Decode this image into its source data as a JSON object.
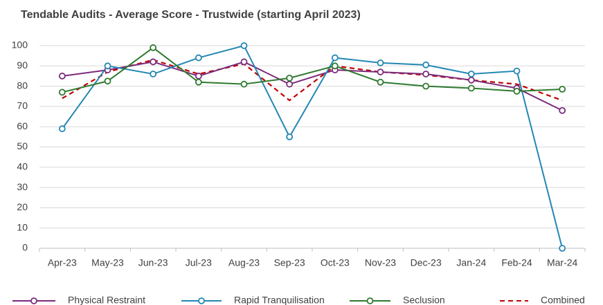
{
  "chart_data": {
    "type": "line",
    "title": "Tendable Audits - Average Score - Trustwide (starting April 2023)",
    "categories": [
      "Apr-23",
      "May-23",
      "Jun-23",
      "Jul-23",
      "Aug-23",
      "Sep-23",
      "Oct-23",
      "Nov-23",
      "Dec-23",
      "Jan-24",
      "Feb-24",
      "Mar-24"
    ],
    "series": [
      {
        "name": "Physical Restraint",
        "color": "#7b2a7b",
        "markers": true,
        "dashed": false,
        "values": [
          85,
          88,
          92,
          85,
          92,
          81,
          88,
          87,
          86,
          83,
          79,
          68
        ]
      },
      {
        "name": "Rapid Tranquilisation",
        "color": "#2287b3",
        "markers": true,
        "dashed": false,
        "values": [
          59,
          90,
          86,
          94,
          100,
          55,
          94,
          91.5,
          90.5,
          86,
          87.5,
          0
        ]
      },
      {
        "name": "Seclusion",
        "color": "#2f7a2f",
        "markers": true,
        "dashed": false,
        "values": [
          77,
          82.5,
          99,
          82,
          81,
          84,
          90,
          82,
          80,
          79,
          77.5,
          78.5
        ]
      },
      {
        "name": "Combined",
        "color": "#c00000",
        "markers": false,
        "dashed": true,
        "values": [
          74,
          87,
          93,
          86,
          91,
          73,
          90,
          87,
          85.5,
          83,
          81,
          73
        ]
      }
    ],
    "ylim": [
      0,
      100
    ],
    "yticks": [
      0,
      10,
      20,
      30,
      40,
      50,
      60,
      70,
      80,
      90,
      100
    ],
    "grid": true,
    "legend": "bottom"
  }
}
